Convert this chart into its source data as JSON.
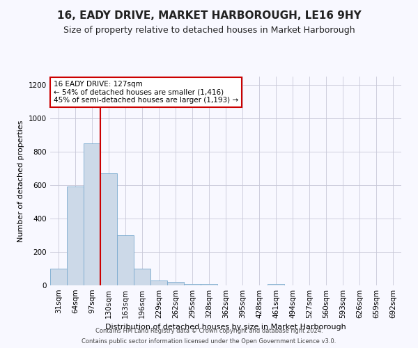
{
  "title": "16, EADY DRIVE, MARKET HARBOROUGH, LE16 9HY",
  "subtitle": "Size of property relative to detached houses in Market Harborough",
  "xlabel": "Distribution of detached houses by size in Market Harborough",
  "ylabel": "Number of detached properties",
  "bins": [
    "31sqm",
    "64sqm",
    "97sqm",
    "130sqm",
    "163sqm",
    "196sqm",
    "229sqm",
    "262sqm",
    "295sqm",
    "328sqm",
    "362sqm",
    "395sqm",
    "428sqm",
    "461sqm",
    "494sqm",
    "527sqm",
    "560sqm",
    "593sqm",
    "626sqm",
    "659sqm",
    "692sqm"
  ],
  "values": [
    100,
    590,
    850,
    670,
    300,
    100,
    30,
    20,
    10,
    10,
    0,
    0,
    0,
    10,
    0,
    0,
    0,
    0,
    0,
    0,
    0
  ],
  "bar_color": "#ccd9e8",
  "bar_edge_color": "#7aaacf",
  "vline_color": "#cc0000",
  "vline_x_index": 2.5,
  "annotation_text": "16 EADY DRIVE: 127sqm\n← 54% of detached houses are smaller (1,416)\n45% of semi-detached houses are larger (1,193) →",
  "annotation_box_color": "#ffffff",
  "annotation_box_edge": "#cc0000",
  "ylim": [
    0,
    1250
  ],
  "yticks": [
    0,
    200,
    400,
    600,
    800,
    1000,
    1200
  ],
  "footer1": "Contains HM Land Registry data © Crown copyright and database right 2024.",
  "footer2": "Contains public sector information licensed under the Open Government Licence v3.0.",
  "bg_color": "#f8f8ff",
  "grid_color": "#c8c8d8",
  "title_fontsize": 11,
  "subtitle_fontsize": 9,
  "xlabel_fontsize": 8,
  "ylabel_fontsize": 8,
  "tick_fontsize": 7.5,
  "footer_fontsize": 6
}
